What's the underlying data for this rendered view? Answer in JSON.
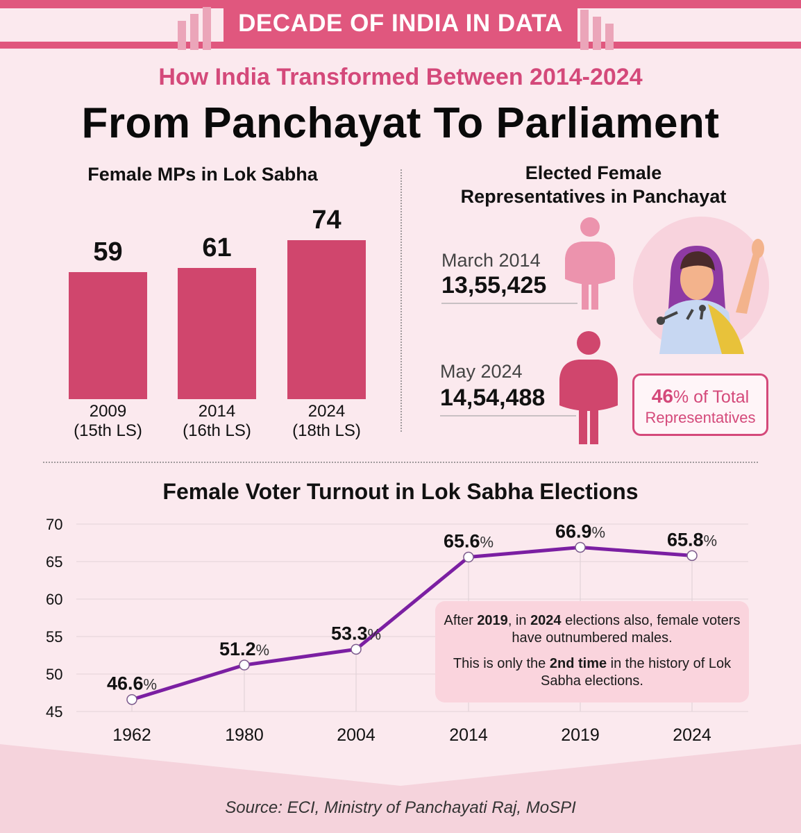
{
  "banner": {
    "label": "DECADE OF INDIA IN DATA"
  },
  "subtitle": "How India Transformed Between 2014-2024",
  "title": "From Panchayat To Parliament",
  "mps": {
    "heading": "Female MPs in Lok Sabha"
  },
  "panchayat": {
    "heading_line1": "Elected Female",
    "heading_line2": "Representatives in Panchayat",
    "rows": [
      {
        "period": "March 2014",
        "count": "13,55,425"
      },
      {
        "period": "May 2024",
        "count": "14,54,488"
      }
    ],
    "share_pct": "46",
    "share_pct_suffix": "% of Total",
    "share_label": "Representatives"
  },
  "turnout": {
    "heading": "Female Voter Turnout in Lok Sabha Elections",
    "note_p1": "After 2019, in 2024 elections also, female voters have outnumbered males.",
    "note_p1_bold": [
      "2019",
      "2024"
    ],
    "note_p2": "This is only the 2nd time in the history of Lok Sabha elections.",
    "note_p2_bold": [
      "2nd time"
    ]
  },
  "source": "Source: ECI, Ministry of Panchayati Raj, MoSPI",
  "colors": {
    "accent": "#d0466d",
    "line": "#7b1fa2",
    "banner": "#e0577e"
  },
  "chart_data": [
    {
      "type": "bar",
      "title": "Female MPs in Lok Sabha",
      "categories": [
        "2009",
        "2014",
        "2024"
      ],
      "category_sublabels": [
        "(15th LS)",
        "(16th LS)",
        "(18th LS)"
      ],
      "values": [
        59,
        61,
        74
      ],
      "value_labels": [
        "59",
        "61",
        "74"
      ],
      "ylim": [
        0,
        80
      ]
    },
    {
      "type": "line",
      "title": "Female Voter Turnout in Lok Sabha Elections",
      "x": [
        "1962",
        "1980",
        "2004",
        "2014",
        "2019",
        "2024"
      ],
      "values": [
        46.6,
        51.2,
        53.3,
        65.6,
        66.9,
        65.8
      ],
      "value_labels": [
        "46.6",
        "51.2",
        "53.3",
        "65.6",
        "66.9",
        "65.8"
      ],
      "value_suffix": "%",
      "yticks": [
        "45",
        "50",
        "55",
        "60",
        "65",
        "70"
      ],
      "ylim": [
        45,
        70
      ],
      "grid": true
    }
  ]
}
